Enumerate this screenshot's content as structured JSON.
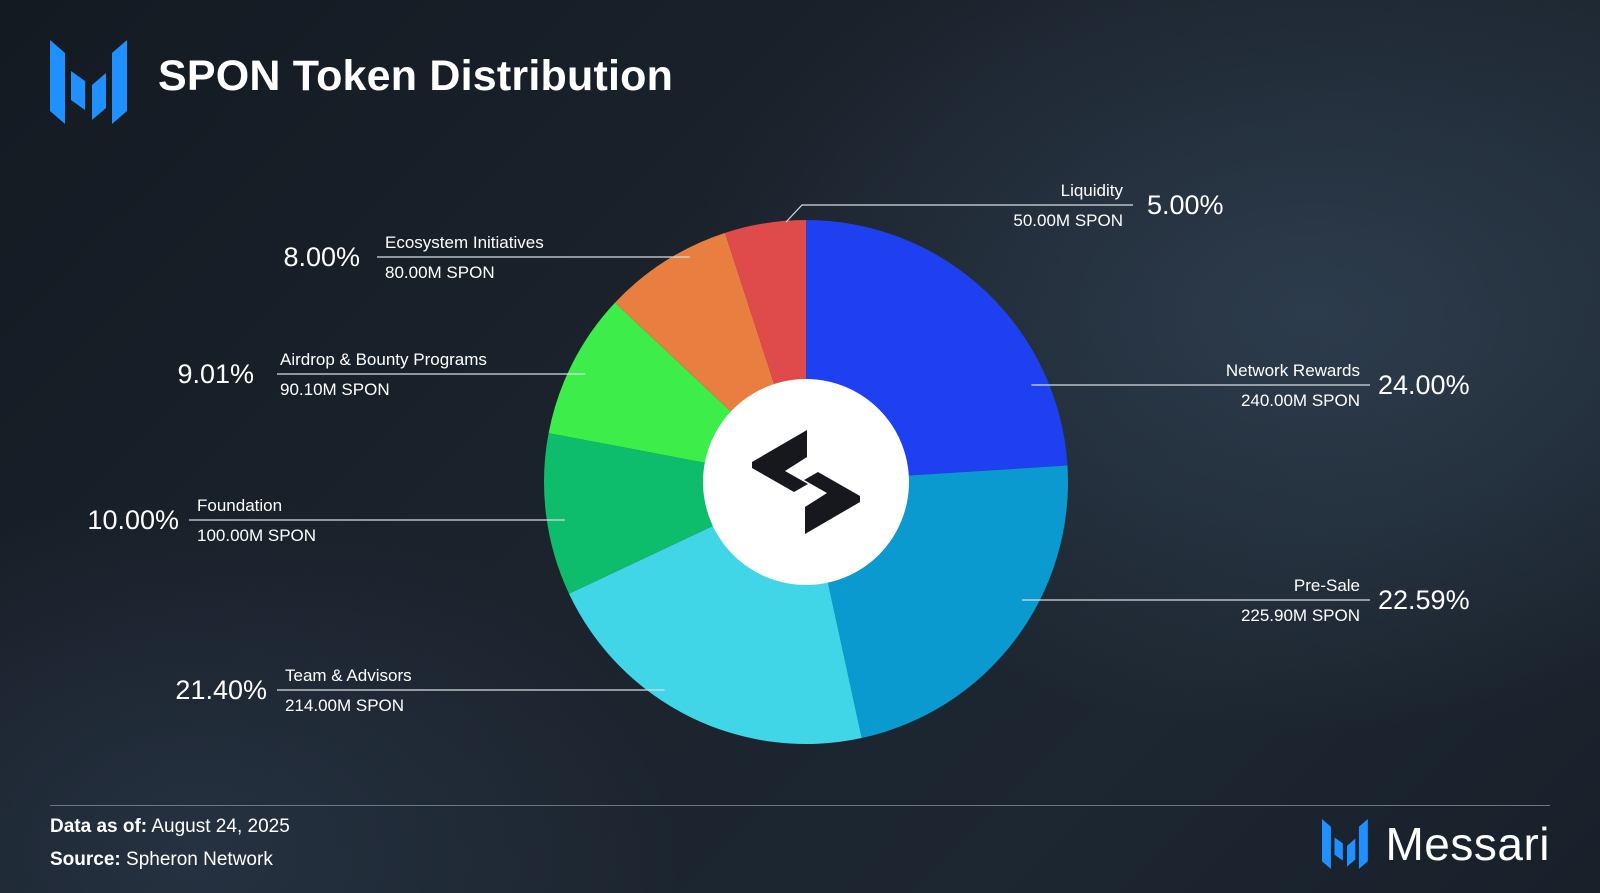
{
  "header": {
    "title": "SPON Token Distribution",
    "logo_icon": "messari-m-icon"
  },
  "center_icon": "spheron-s-icon",
  "chart_data": {
    "type": "pie",
    "title": "SPON Token Distribution",
    "start_angle_deg": 0,
    "direction": "clockwise",
    "slices": [
      {
        "name": "Network Rewards",
        "pct": 24.0,
        "pct_label": "24.00%",
        "amount": "240.00M SPON",
        "color": "#1e40f0",
        "label_side": "right"
      },
      {
        "name": "Pre-Sale",
        "pct": 22.59,
        "pct_label": "22.59%",
        "amount": "225.90M SPON",
        "color": "#0a9ad0",
        "label_side": "right"
      },
      {
        "name": "Team & Advisors",
        "pct": 21.4,
        "pct_label": "21.40%",
        "amount": "214.00M SPON",
        "color": "#40d6e8",
        "label_side": "left"
      },
      {
        "name": "Foundation",
        "pct": 10.0,
        "pct_label": "10.00%",
        "amount": "100.00M SPON",
        "color": "#0ebd6b",
        "label_side": "left"
      },
      {
        "name": "Airdrop & Bounty Programs",
        "pct": 9.01,
        "pct_label": "9.01%",
        "amount": "90.10M SPON",
        "color": "#3ded4a",
        "label_side": "left"
      },
      {
        "name": "Ecosystem Initiatives",
        "pct": 8.0,
        "pct_label": "8.00%",
        "amount": "80.00M SPON",
        "color": "#e87f40",
        "label_side": "left"
      },
      {
        "name": "Liquidity",
        "pct": 5.0,
        "pct_label": "5.00%",
        "amount": "50.00M SPON",
        "color": "#df4a4a",
        "label_side": "right"
      }
    ]
  },
  "footer": {
    "as_of_label": "Data as of:",
    "as_of_value": "August 24, 2025",
    "source_label": "Source:",
    "source_value": "Spheron Network",
    "brand": "Messari",
    "brand_icon": "messari-m-icon"
  },
  "colors": {
    "background": "#1b232d",
    "accent": "#1e90ff",
    "leader_line": "#d7dde3",
    "divider": "#6c7784"
  }
}
